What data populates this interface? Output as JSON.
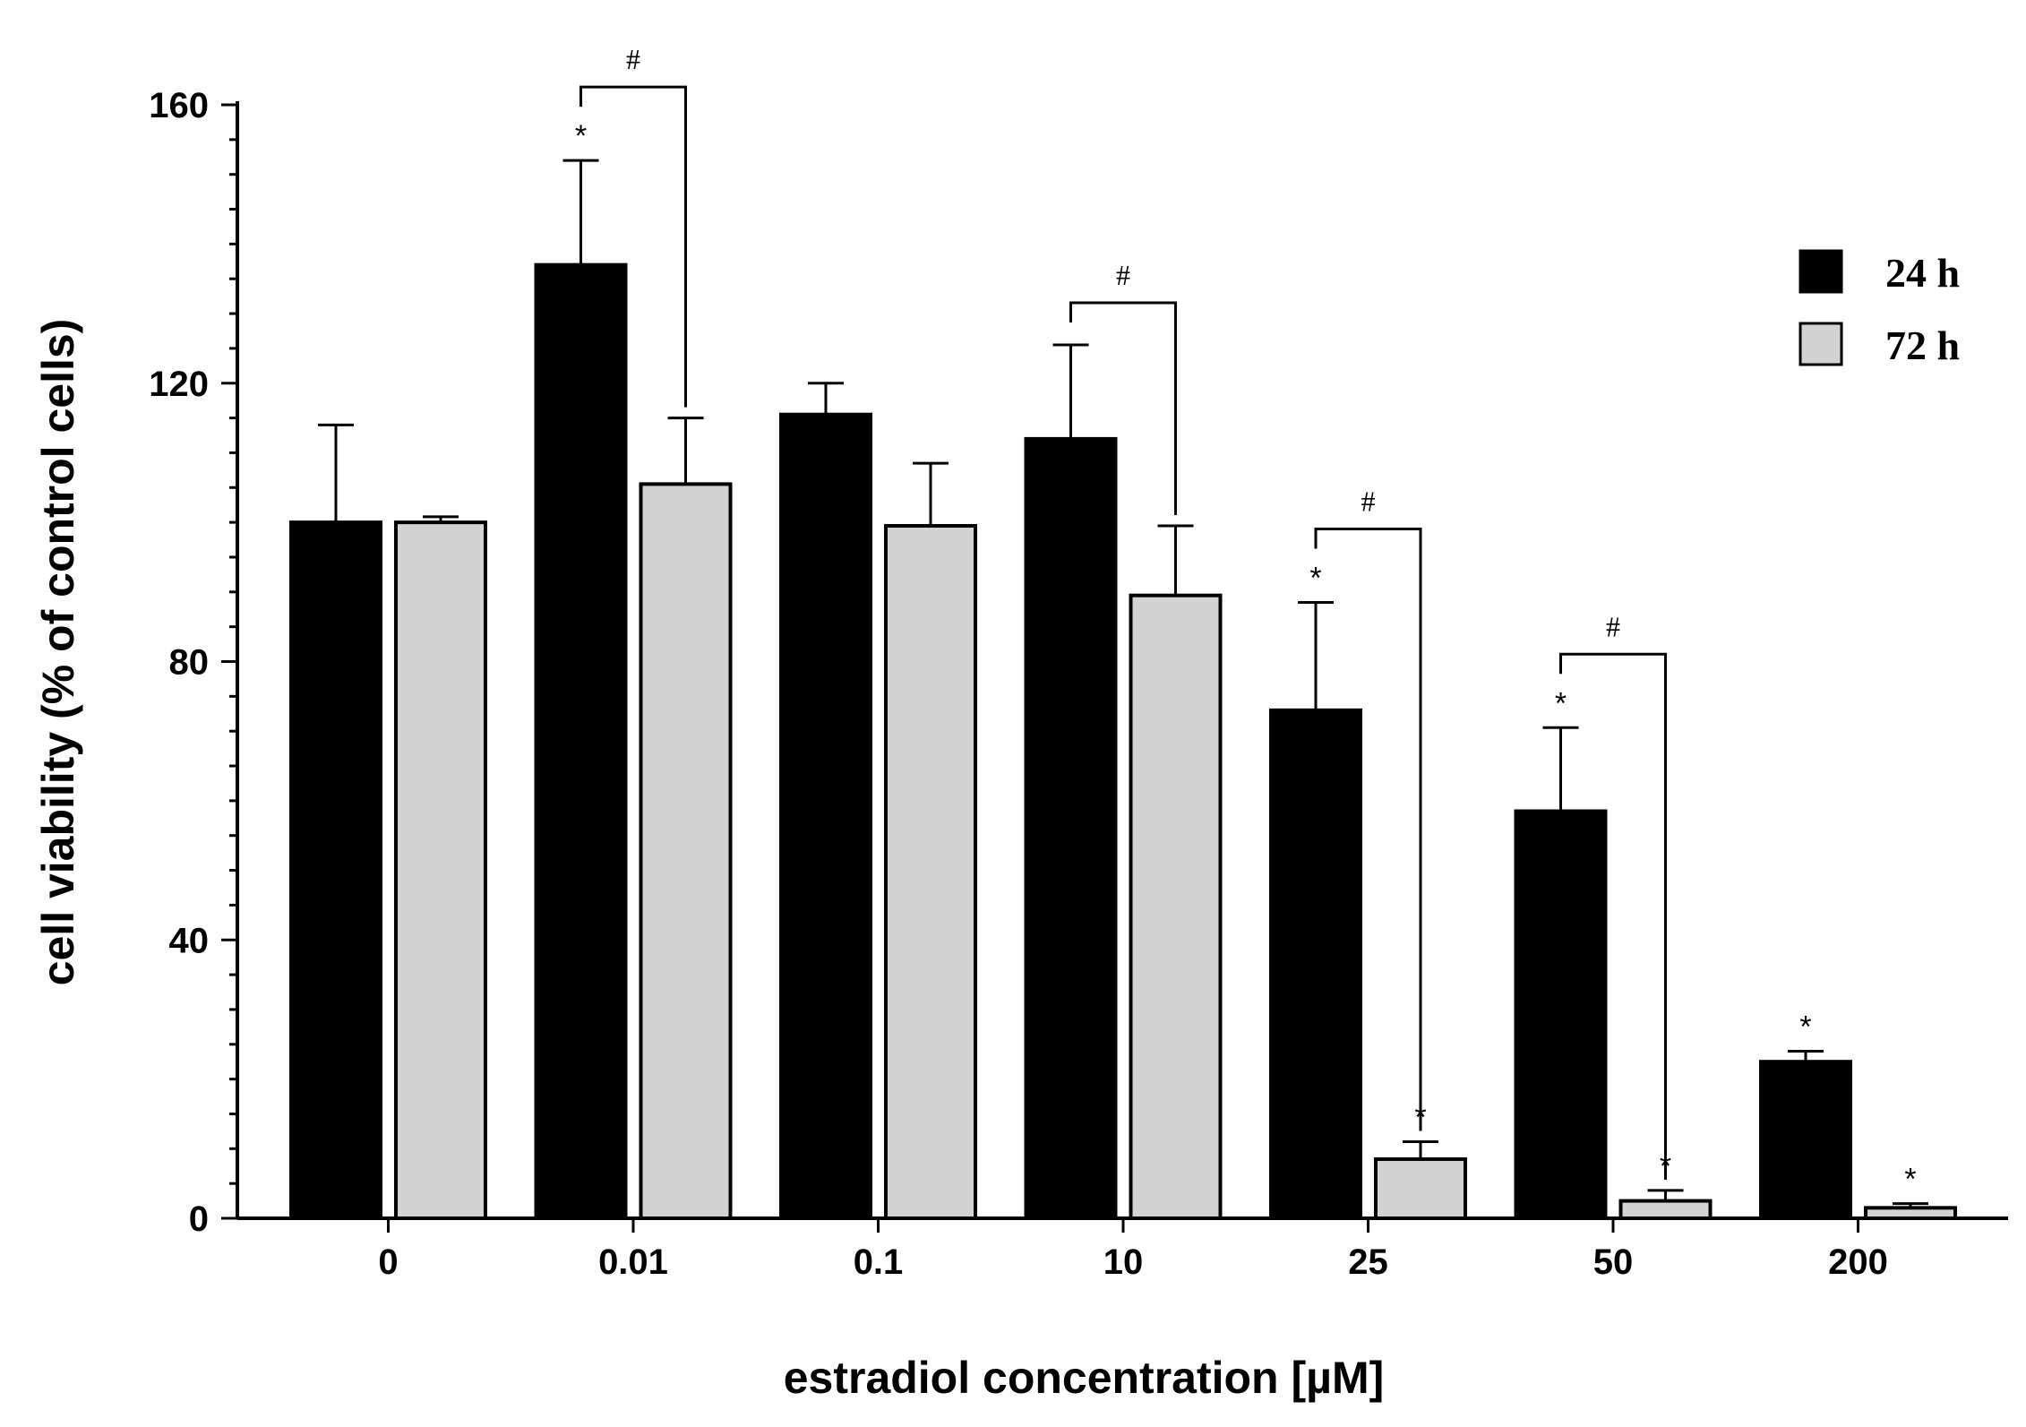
{
  "chart_data": {
    "type": "bar",
    "title": "",
    "xlabel": "estradiol concentration [µM]",
    "ylabel": "cell viability (% of control cells)",
    "categories": [
      "0",
      "0.01",
      "0.1",
      "10",
      "25",
      "50",
      "200"
    ],
    "ylim": [
      0,
      160
    ],
    "yticks": [
      "0",
      "40",
      "80",
      "120",
      "160"
    ],
    "series": [
      {
        "name": "24 h",
        "color": "#000000",
        "values": [
          100,
          137,
          115.5,
          112,
          73,
          58.5,
          22.5
        ],
        "errors": [
          14,
          15,
          4.5,
          13.5,
          15.5,
          12,
          1.5
        ],
        "significance": [
          "",
          "*",
          "",
          "",
          "*",
          "*",
          "*"
        ]
      },
      {
        "name": "72 h",
        "color": "#d3d3d3",
        "values": [
          100,
          105.5,
          99.5,
          89.5,
          8.5,
          2.5,
          1.5
        ],
        "errors": [
          0.8,
          9.5,
          9,
          10,
          2.5,
          1.5,
          0.6
        ],
        "significance": [
          "",
          "",
          "",
          "",
          "*",
          "*",
          "*"
        ]
      }
    ],
    "comparisons": [
      {
        "category_index": 1,
        "label": "#"
      },
      {
        "category_index": 3,
        "label": "#"
      },
      {
        "category_index": 4,
        "label": "#"
      },
      {
        "category_index": 5,
        "label": "#"
      }
    ],
    "legend_position": "top-right"
  }
}
